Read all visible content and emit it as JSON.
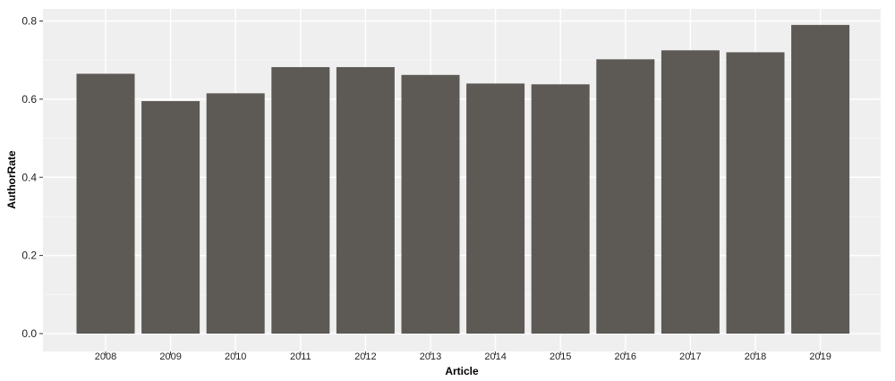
{
  "chart_data": {
    "type": "bar",
    "categories": [
      "2008",
      "2009",
      "2010",
      "2011",
      "2012",
      "2013",
      "2014",
      "2015",
      "2016",
      "2017",
      "2018",
      "2019"
    ],
    "values": [
      0.665,
      0.595,
      0.615,
      0.682,
      0.682,
      0.662,
      0.64,
      0.638,
      0.702,
      0.725,
      0.72,
      0.79
    ],
    "xlabel": "Article",
    "ylabel": "AuthorRate",
    "ylim": [
      0,
      0.8
    ],
    "yticks": [
      0.0,
      0.2,
      0.4,
      0.6,
      0.8
    ],
    "ytick_labels": [
      "0.0",
      "0.2",
      "0.4",
      "0.6",
      "0.8"
    ],
    "grid": true,
    "legend": "none",
    "colors": {
      "bar": "#5d5955",
      "panel": "#efefef",
      "grid_major": "#ffffff",
      "grid_minor": "#f7f7f7",
      "tick": "#333333"
    }
  }
}
